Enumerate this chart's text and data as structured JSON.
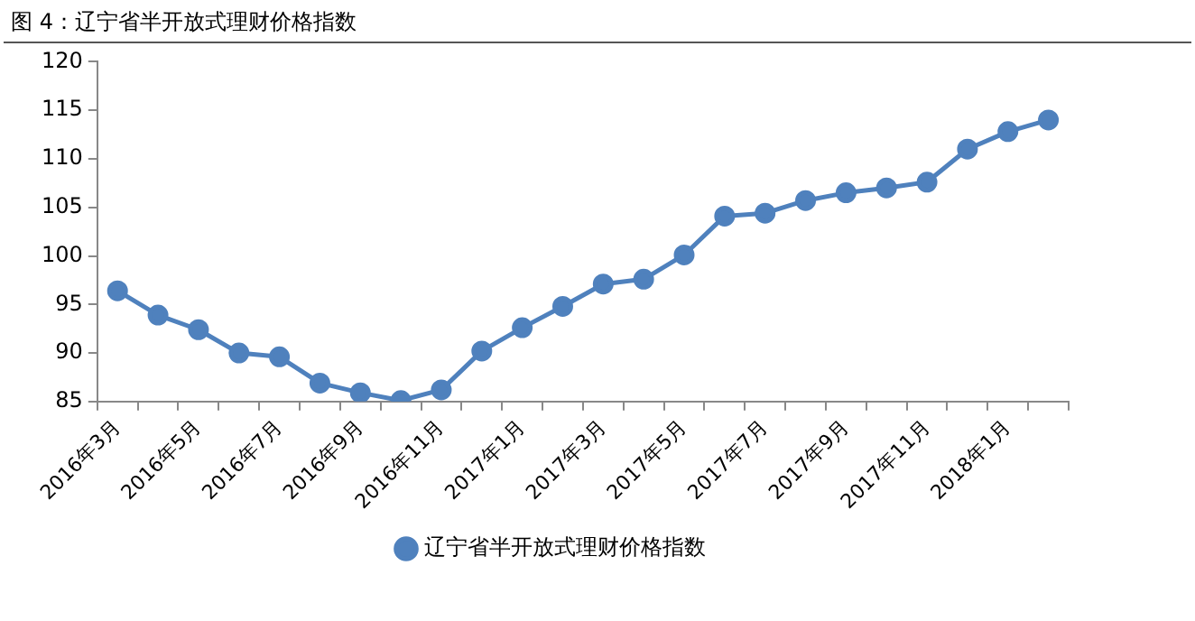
{
  "chart_data": {
    "type": "line",
    "title": "图 4：辽宁省半开放式理财价格指数",
    "categories": [
      "2016年3月",
      null,
      "2016年5月",
      null,
      "2016年7月",
      null,
      "2016年9月",
      null,
      "2016年11月",
      null,
      "2017年1月",
      null,
      "2017年3月",
      null,
      "2017年5月",
      null,
      "2017年7月",
      null,
      "2017年9月",
      null,
      "2017年11月",
      null,
      "2018年1月",
      null
    ],
    "series": [
      {
        "name": "辽宁省半开放式理财价格指数",
        "color": "#4f81bd",
        "values": [
          96.4,
          93.9,
          92.4,
          90.0,
          89.6,
          86.9,
          85.9,
          85.1,
          86.2,
          90.2,
          92.6,
          94.8,
          97.1,
          97.6,
          100.1,
          104.1,
          104.4,
          105.7,
          106.5,
          107.0,
          107.6,
          111.0,
          112.8,
          114.0
        ]
      }
    ],
    "ylim": [
      85,
      120
    ],
    "yticks": [
      85,
      90,
      95,
      100,
      105,
      110,
      115,
      120
    ],
    "grid": false,
    "legend": "bottom",
    "marker": "circle",
    "line_style": "solid"
  }
}
